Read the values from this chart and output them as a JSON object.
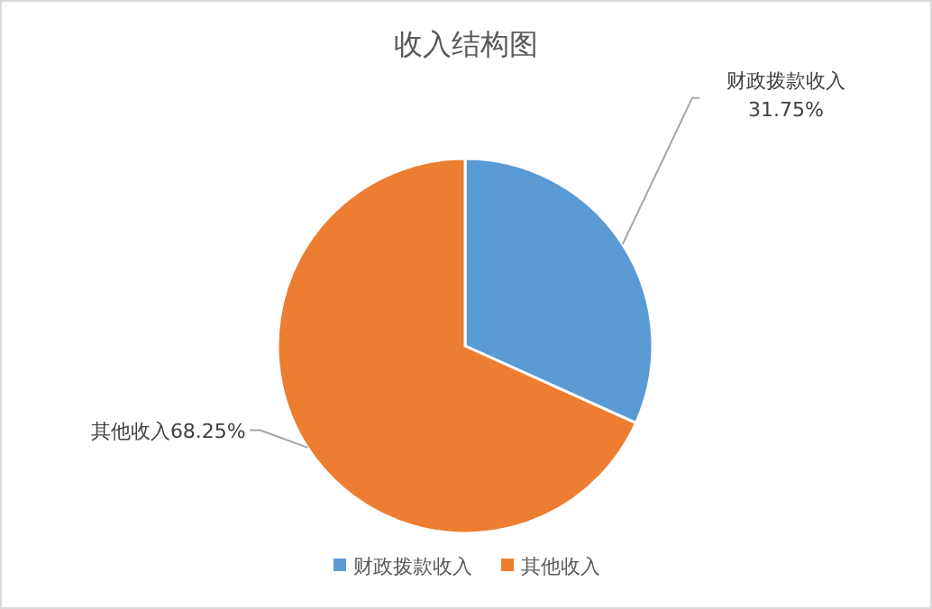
{
  "chart_data": {
    "type": "pie",
    "title": "收入结构图",
    "categories": [
      "财政拨款收入",
      "其他收入"
    ],
    "values": [
      31.75,
      68.25
    ],
    "colors": [
      "#5b9bd5",
      "#ed7d31"
    ],
    "value_labels": [
      "财政拨款收入\n31.75%",
      "其他收入68.25%"
    ],
    "legend": "bottom"
  }
}
